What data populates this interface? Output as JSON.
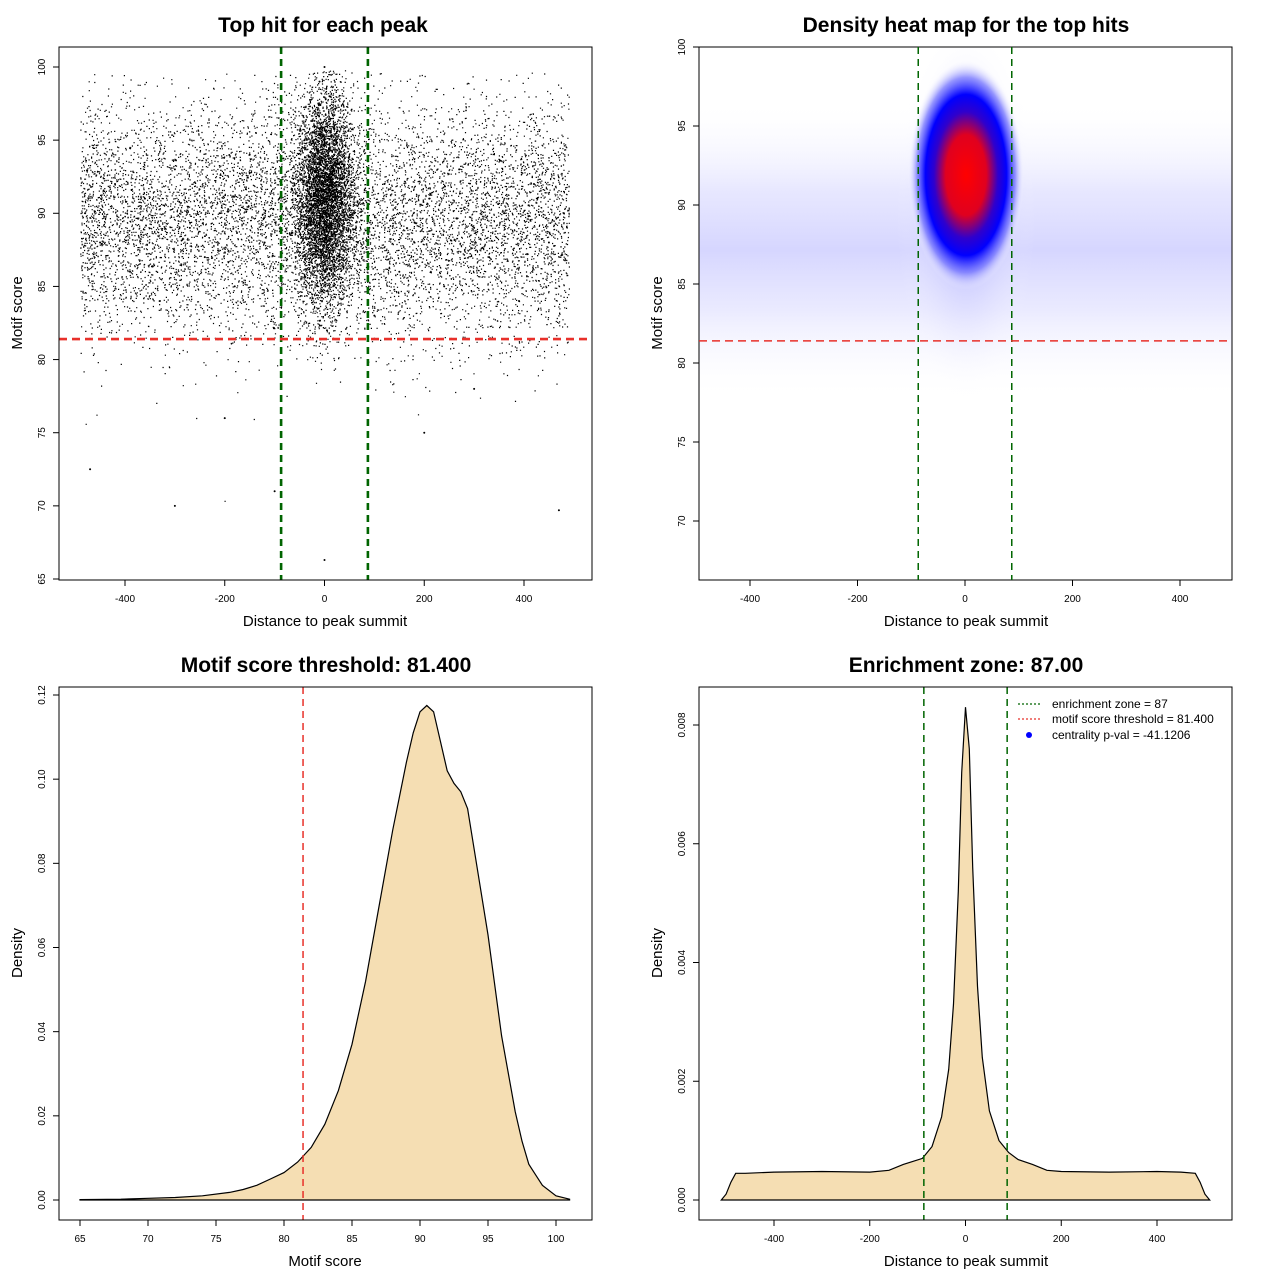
{
  "chart_data": [
    {
      "type": "scatter",
      "title": "Top hit for each peak",
      "xlabel": "Distance to peak summit",
      "ylabel": "Motif score",
      "xlim": [
        -500,
        500
      ],
      "ylim": [
        65,
        101
      ],
      "xticks": [
        -400,
        -200,
        0,
        200,
        400
      ],
      "yticks": [
        65,
        70,
        75,
        80,
        85,
        90,
        95,
        100
      ],
      "grid": false,
      "vlines": [
        {
          "x": -87,
          "color": "#006400",
          "style": "dashed"
        },
        {
          "x": 87,
          "color": "#006400",
          "style": "dashed"
        }
      ],
      "hlines": [
        {
          "y": 81.4,
          "color": "#e8302a",
          "style": "dashed"
        }
      ],
      "points_note_x": [
        -480,
        -450,
        -420,
        -390,
        -360,
        -330,
        -300,
        -270,
        -240,
        -210,
        -180,
        -150,
        -120,
        -90,
        -60,
        -40,
        -20,
        -10,
        0,
        10,
        20,
        40,
        60,
        90,
        120,
        150,
        180,
        210,
        240,
        270,
        300,
        330,
        360,
        390,
        420,
        450,
        480,
        -470,
        -300,
        -100,
        0,
        5,
        -5,
        100,
        300,
        470,
        0,
        -200,
        200,
        0
      ],
      "points": {
        "x": [
          -480,
          -450,
          -420,
          -390,
          -360,
          -330,
          -300,
          -270,
          -240,
          -210,
          -180,
          -150,
          -120,
          -90,
          -60,
          -40,
          -20,
          -10,
          0,
          10,
          20,
          40,
          60,
          90,
          120,
          150,
          180,
          210,
          240,
          270,
          300,
          330,
          360,
          390,
          420,
          450,
          480,
          -470,
          -300,
          -100,
          0,
          5,
          -5,
          100,
          300,
          470,
          0,
          -200,
          200,
          0
        ],
        "y": [
          90,
          88,
          92,
          86,
          91,
          84,
          93,
          89,
          87,
          90,
          85,
          94,
          88,
          91,
          92,
          95,
          97,
          99,
          100,
          98,
          96,
          93,
          90,
          89,
          92,
          86,
          88,
          91,
          85,
          93,
          89,
          87,
          90,
          84,
          92,
          88,
          90,
          72.5,
          70,
          71,
          66.3,
          82,
          84,
          83,
          78,
          69.7,
          88,
          76,
          75,
          91
        ]
      }
    },
    {
      "type": "heatmap",
      "title": "Density heat map for the top hits",
      "xlabel": "Distance to peak summit",
      "ylabel": "Motif score",
      "xlim": [
        -490,
        490
      ],
      "ylim": [
        66,
        100
      ],
      "xticks": [
        -400,
        -200,
        0,
        200,
        400
      ],
      "yticks": [
        70,
        75,
        80,
        85,
        90,
        95,
        100
      ],
      "colors": [
        "#ffffff",
        "#0000ff",
        "#ff0000"
      ],
      "peak": {
        "x": 0,
        "y": 91.5
      },
      "vlines": [
        {
          "x": -87,
          "color": "#006400",
          "style": "dashed"
        },
        {
          "x": 87,
          "color": "#006400",
          "style": "dashed"
        }
      ],
      "hlines": [
        {
          "y": 81.4,
          "color": "#e8302a",
          "style": "dashed"
        }
      ]
    },
    {
      "type": "area",
      "title": "Motif score threshold: 81.400",
      "xlabel": "Motif score",
      "ylabel": "Density",
      "xlim": [
        64,
        102
      ],
      "ylim": [
        -0.004,
        0.122
      ],
      "xticks": [
        65,
        70,
        75,
        80,
        85,
        90,
        95,
        100
      ],
      "yticks": [
        0.0,
        0.02,
        0.04,
        0.06,
        0.08,
        0.1,
        0.12
      ],
      "ytick_labels": [
        "0.00",
        "0.02",
        "0.04",
        "0.06",
        "0.08",
        "0.10",
        "0.12"
      ],
      "fill": "#f5deb3",
      "vlines": [
        {
          "x": 81.4,
          "color": "#e8302a",
          "style": "dashed"
        }
      ],
      "series": [
        {
          "x": [
            65,
            68,
            70,
            72,
            74,
            76,
            77,
            78,
            79,
            80,
            81,
            82,
            83,
            84,
            85,
            86,
            87,
            88,
            88.5,
            89,
            89.5,
            90,
            90.5,
            91,
            91.5,
            92,
            92.5,
            93,
            93.5,
            94,
            95,
            96,
            97,
            97.5,
            98,
            98.5,
            99,
            100,
            101
          ],
          "y": [
            0.0001,
            0.0002,
            0.0004,
            0.0006,
            0.001,
            0.0018,
            0.0025,
            0.0035,
            0.005,
            0.0065,
            0.009,
            0.0125,
            0.018,
            0.026,
            0.037,
            0.052,
            0.07,
            0.088,
            0.096,
            0.104,
            0.111,
            0.116,
            0.1175,
            0.116,
            0.109,
            0.102,
            0.099,
            0.097,
            0.093,
            0.083,
            0.063,
            0.039,
            0.021,
            0.014,
            0.0085,
            0.006,
            0.0035,
            0.001,
            0.0002
          ]
        }
      ]
    },
    {
      "type": "area",
      "title": "Enrichment zone: 87.00",
      "xlabel": "Distance to peak summit",
      "ylabel": "Density",
      "xlim": [
        -540,
        560
      ],
      "ylim": [
        -0.0003,
        0.0086
      ],
      "xticks": [
        -400,
        -200,
        0,
        200,
        400
      ],
      "yticks": [
        0.0,
        0.002,
        0.004,
        0.006,
        0.008
      ],
      "ytick_labels": [
        "0.000",
        "0.002",
        "0.004",
        "0.006",
        "0.008"
      ],
      "fill": "#f5deb3",
      "vlines": [
        {
          "x": -87,
          "color": "#006400",
          "style": "dashed"
        },
        {
          "x": 87,
          "color": "#006400",
          "style": "dashed"
        }
      ],
      "series": [
        {
          "x": [
            -510,
            -500,
            -490,
            -480,
            -460,
            -400,
            -300,
            -200,
            -160,
            -130,
            -110,
            -90,
            -70,
            -50,
            -35,
            -25,
            -15,
            -8,
            0,
            8,
            15,
            25,
            35,
            50,
            70,
            90,
            110,
            140,
            170,
            200,
            300,
            400,
            450,
            480,
            490,
            500,
            510
          ],
          "y": [
            0,
            0.0001,
            0.0003,
            0.00045,
            0.00045,
            0.00047,
            0.00048,
            0.00047,
            0.0005,
            0.0006,
            0.00065,
            0.0007,
            0.0009,
            0.0014,
            0.0022,
            0.0033,
            0.0052,
            0.0072,
            0.0083,
            0.0076,
            0.0056,
            0.0036,
            0.0024,
            0.0015,
            0.001,
            0.0008,
            0.00068,
            0.0006,
            0.0005,
            0.00048,
            0.00047,
            0.00048,
            0.00047,
            0.00045,
            0.0003,
            0.0001,
            0
          ]
        }
      ],
      "legend": {
        "placement": "top-right",
        "entries": [
          {
            "label": "enrichment zone = 87",
            "color": "#006400",
            "kind": "line"
          },
          {
            "label": "motif score threshold = 81.400",
            "color": "#e8302a",
            "kind": "line"
          },
          {
            "label": "centrality p-val = -41.1206",
            "color": "#0000ff",
            "kind": "point"
          }
        ]
      }
    }
  ]
}
